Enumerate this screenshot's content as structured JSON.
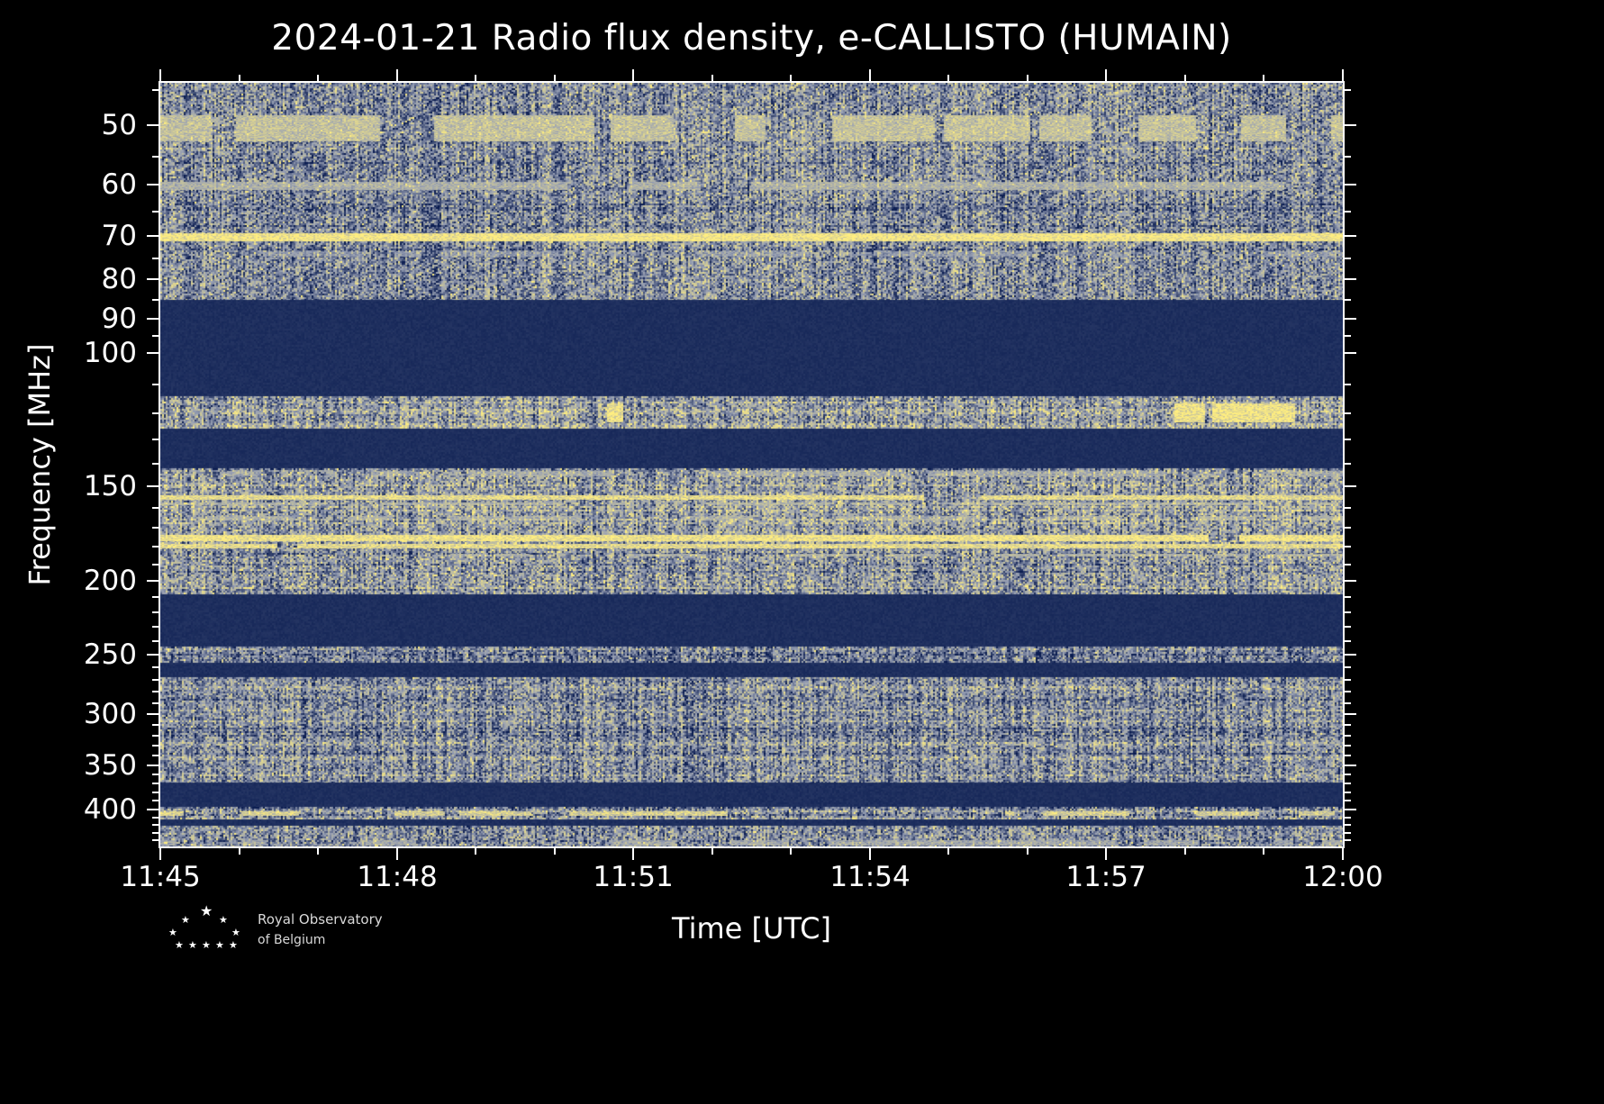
{
  "title": "2024-01-21 Radio flux density, e-CALLISTO (HUMAIN)",
  "axes": {
    "xlabel": "Time [UTC]",
    "ylabel": "Frequency [MHz]"
  },
  "logo": {
    "line1": "Royal Observatory",
    "line2": "of Belgium",
    "star_glyph": "★"
  },
  "chart_data": {
    "type": "heatmap",
    "subtype": "radio-spectrogram",
    "title": "2024-01-21 Radio flux density, e-CALLISTO (HUMAIN)",
    "xlabel": "Time [UTC]",
    "ylabel": "Frequency [MHz]",
    "x_ticks": [
      "11:45",
      "11:48",
      "11:51",
      "11:54",
      "11:57",
      "12:00"
    ],
    "x_range_minutes": [
      0,
      15
    ],
    "x_minor_step_minutes": 1,
    "y_scale": "log",
    "freq_range": [
      44,
      448
    ],
    "y_ticks_major": [
      50,
      60,
      70,
      80,
      90,
      100,
      150,
      200,
      250,
      300,
      350,
      400
    ],
    "y_ticks_minor": [
      45,
      55,
      65,
      75,
      85,
      95,
      110,
      120,
      130,
      140,
      160,
      170,
      180,
      190,
      210,
      220,
      230,
      240,
      260,
      270,
      280,
      290,
      310,
      320,
      330,
      340,
      360,
      370,
      380,
      390,
      410,
      420,
      430,
      440
    ],
    "colors": {
      "background": "#000000",
      "blank_band": "#0d2257",
      "noise_dark": "#0a1c50",
      "noise_light": "#98a0b4",
      "bright": "#ffee80",
      "axis": "#ffffff"
    },
    "bands": [
      {
        "f_start": 44,
        "f_end": 85,
        "kind": "noise",
        "level": 0.43,
        "sparkle": 0.03,
        "diag": true
      },
      {
        "f_start": 85,
        "f_end": 114,
        "kind": "blank"
      },
      {
        "f_start": 114,
        "f_end": 126,
        "kind": "noise",
        "level": 0.45,
        "sparkle": 0.05
      },
      {
        "f_start": 126,
        "f_end": 142,
        "kind": "blank"
      },
      {
        "f_start": 142,
        "f_end": 208,
        "kind": "noise",
        "level": 0.46,
        "sparkle": 0.07
      },
      {
        "f_start": 208,
        "f_end": 244,
        "kind": "blank"
      },
      {
        "f_start": 244,
        "f_end": 256,
        "kind": "noise",
        "level": 0.37,
        "sparkle": 0.02
      },
      {
        "f_start": 256,
        "f_end": 268,
        "kind": "blank"
      },
      {
        "f_start": 268,
        "f_end": 369,
        "kind": "noise",
        "level": 0.42,
        "sparkle": 0.02
      },
      {
        "f_start": 369,
        "f_end": 397,
        "kind": "blank"
      },
      {
        "f_start": 397,
        "f_end": 413,
        "kind": "noise",
        "level": 0.4,
        "sparkle": 0.05
      },
      {
        "f_start": 413,
        "f_end": 421,
        "kind": "blank"
      },
      {
        "f_start": 421,
        "f_end": 448,
        "kind": "noise",
        "level": 0.43,
        "sparkle": 0.04
      }
    ],
    "bright_lines": [
      {
        "f_start": 48.5,
        "f_end": 52.5,
        "strength": 0.72,
        "coverage": 0.7
      },
      {
        "f_start": 59.5,
        "f_end": 61.0,
        "strength": 0.6,
        "coverage": 0.8
      },
      {
        "f_start": 69.5,
        "f_end": 71.2,
        "strength": 1.0,
        "coverage": 1.0
      },
      {
        "f_start": 73.5,
        "f_end": 74.6,
        "strength": 0.45,
        "coverage": 0.5
      },
      {
        "f_start": 116.5,
        "f_end": 123.5,
        "strength": 0.95,
        "coverage": 0.13
      },
      {
        "f_start": 143.0,
        "f_end": 145.5,
        "strength": 0.55,
        "coverage": 0.5
      },
      {
        "f_start": 154.0,
        "f_end": 156.2,
        "strength": 0.9,
        "coverage": 0.95
      },
      {
        "f_start": 157.5,
        "f_end": 159.0,
        "strength": 0.62,
        "coverage": 0.6
      },
      {
        "f_start": 164.0,
        "f_end": 166.2,
        "strength": 0.58,
        "coverage": 0.45
      },
      {
        "f_start": 174.0,
        "f_end": 177.2,
        "strength": 0.97,
        "coverage": 0.97
      },
      {
        "f_start": 178.5,
        "f_end": 181.0,
        "strength": 0.9,
        "coverage": 0.9
      },
      {
        "f_start": 184.0,
        "f_end": 185.8,
        "strength": 0.62,
        "coverage": 0.5
      },
      {
        "f_start": 403.0,
        "f_end": 408.0,
        "strength": 0.82,
        "coverage": 0.45
      },
      {
        "f_start": 440.0,
        "f_end": 447.0,
        "strength": 0.55,
        "coverage": 0.75
      }
    ]
  }
}
